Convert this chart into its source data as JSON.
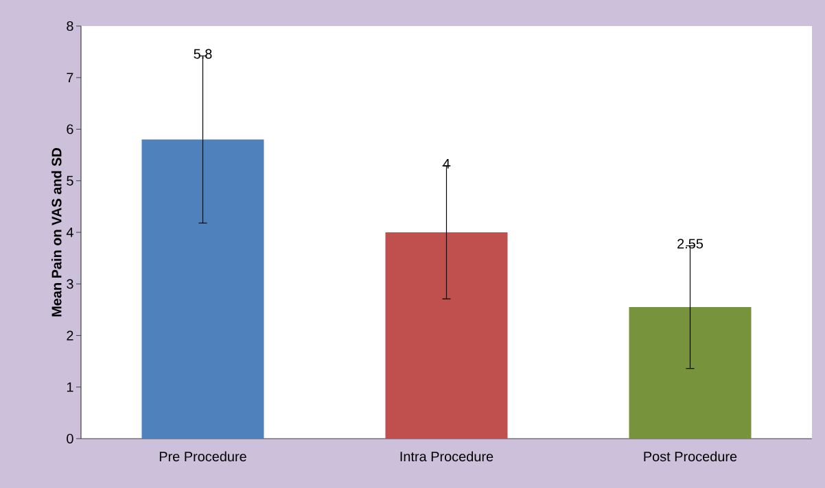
{
  "chart_data": {
    "type": "bar",
    "ylabel": "Mean Pain on VAS and SD",
    "categories": [
      "Pre Procedure",
      "Intra Procedure",
      "Post Procedure"
    ],
    "values": [
      5.8,
      4,
      2.55
    ],
    "colors": [
      "#4f81bd",
      "#c0504d",
      "#77933c"
    ],
    "errors": [
      1.62,
      1.29,
      1.19
    ],
    "annotations": [
      {
        "text": "5.8",
        "x": "Pre Procedure",
        "y": 7.42
      },
      {
        "text": "4",
        "x": "Intra Procedure",
        "y": 5.29
      },
      {
        "text": "2.55",
        "x": "Post Procedure",
        "y": 3.74
      }
    ],
    "ylim": [
      0,
      8
    ],
    "yticks": [
      0,
      1,
      2,
      3,
      4,
      5,
      6,
      7,
      8
    ],
    "grid": false
  }
}
